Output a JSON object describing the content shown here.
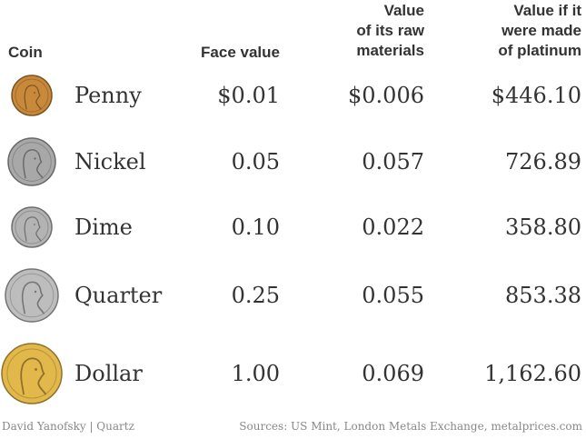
{
  "chart_data": {
    "type": "table",
    "columns": [
      "Coin",
      "Face value",
      "Value of its raw materials",
      "Value if it were made of platinum"
    ],
    "header_lines": {
      "coin": [
        "Coin"
      ],
      "face": [
        "Face value"
      ],
      "raw": [
        "Value",
        "of its raw",
        "materials"
      ],
      "plat": [
        "Value if it",
        "were made",
        "of platinum"
      ]
    },
    "rows": [
      {
        "coin": "Penny",
        "face": "$0.01",
        "raw": "$0.006",
        "plat": "$446.10",
        "face_value": 0.01,
        "raw_value": 0.006,
        "plat_value": 446.1,
        "color": "#c8893a"
      },
      {
        "coin": "Nickel",
        "face": "0.05",
        "raw": "0.057",
        "plat": "726.89",
        "face_value": 0.05,
        "raw_value": 0.057,
        "plat_value": 726.89,
        "color": "#a8a8a8"
      },
      {
        "coin": "Dime",
        "face": "0.10",
        "raw": "0.022",
        "plat": "358.80",
        "face_value": 0.1,
        "raw_value": 0.022,
        "plat_value": 358.8,
        "color": "#b3b3b3"
      },
      {
        "coin": "Quarter",
        "face": "0.25",
        "raw": "0.055",
        "plat": "853.38",
        "face_value": 0.25,
        "raw_value": 0.055,
        "plat_value": 853.38,
        "color": "#bdbdbd"
      },
      {
        "coin": "Dollar",
        "face": "1.00",
        "raw": "0.069",
        "plat": "1,162.60",
        "face_value": 1.0,
        "raw_value": 0.069,
        "plat_value": 1162.6,
        "color": "#e3b84a"
      }
    ]
  },
  "footer": {
    "credit": "David Yanofsky | Quartz",
    "sources": "Sources: US Mint, London Metals Exchange, metalprices.com"
  }
}
